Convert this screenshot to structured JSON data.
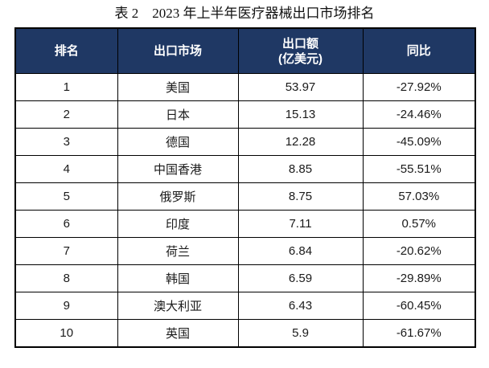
{
  "title": "表 2　2023 年上半年医疗器械出口市场排名",
  "table": {
    "header_bg_color": "#1f3864",
    "header_text_color": "#ffffff",
    "border_color": "#000000",
    "columns": [
      {
        "label": "排名"
      },
      {
        "label": "出口市场"
      },
      {
        "label": "出口额",
        "label_line2": "(亿美元)"
      },
      {
        "label": "同比"
      }
    ],
    "rows": [
      {
        "rank": "1",
        "market": "美国",
        "amount": "53.97",
        "yoy": "-27.92%"
      },
      {
        "rank": "2",
        "market": "日本",
        "amount": "15.13",
        "yoy": "-24.46%"
      },
      {
        "rank": "3",
        "market": "德国",
        "amount": "12.28",
        "yoy": "-45.09%"
      },
      {
        "rank": "4",
        "market": "中国香港",
        "amount": "8.85",
        "yoy": "-55.51%"
      },
      {
        "rank": "5",
        "market": "俄罗斯",
        "amount": "8.75",
        "yoy": "57.03%"
      },
      {
        "rank": "6",
        "market": "印度",
        "amount": "7.11",
        "yoy": "0.57%"
      },
      {
        "rank": "7",
        "market": "荷兰",
        "amount": "6.84",
        "yoy": "-20.62%"
      },
      {
        "rank": "8",
        "market": "韩国",
        "amount": "6.59",
        "yoy": "-29.89%"
      },
      {
        "rank": "9",
        "market": "澳大利亚",
        "amount": "6.43",
        "yoy": "-60.45%"
      },
      {
        "rank": "10",
        "market": "英国",
        "amount": "5.9",
        "yoy": "-61.67%"
      }
    ]
  }
}
